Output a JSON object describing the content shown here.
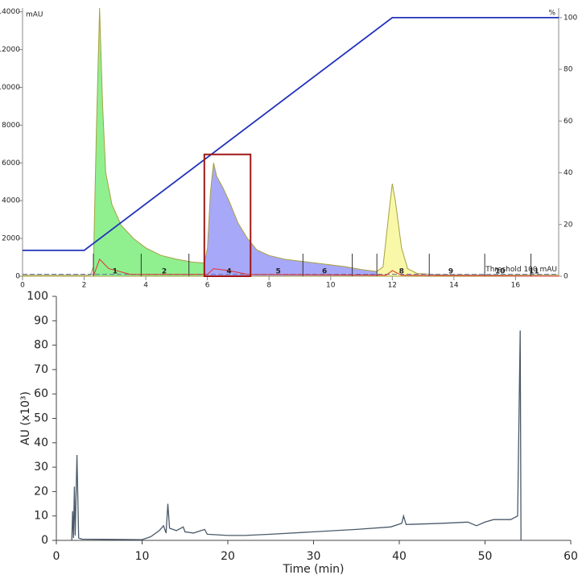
{
  "chart_data": [
    {
      "type": "area",
      "y_unit": "mAU",
      "y2_unit": "%",
      "xlim": [
        0,
        17.4
      ],
      "xticks": [
        0,
        2,
        4,
        6,
        8,
        10,
        12,
        14,
        16
      ],
      "ylim": [
        0,
        14200
      ],
      "yticks": [
        0,
        2000,
        4000,
        6000,
        8000,
        10000,
        12000,
        14000
      ],
      "y2lim": [
        0,
        103.7
      ],
      "y2ticks": [
        0,
        20,
        40,
        60,
        80,
        100
      ],
      "series": [
        {
          "color": "#a8a040",
          "fill": true,
          "x": [
            0,
            2.2,
            2.3,
            2.4,
            2.5,
            2.6,
            2.7,
            2.9,
            3.2,
            3.6,
            4.0,
            4.5,
            5.0,
            5.5,
            5.9,
            6.0,
            6.1,
            6.2,
            6.3,
            6.5,
            6.7,
            7.0,
            7.3,
            7.6,
            8,
            8.5,
            9,
            10,
            10.5,
            11,
            11.5,
            11.7,
            11.9,
            12.0,
            12.1,
            12.3,
            12.5,
            12.8,
            13.5,
            17.4
          ],
          "values": [
            50,
            50,
            500,
            8000,
            14200,
            9000,
            5500,
            3800,
            2700,
            2000,
            1500,
            1100,
            900,
            750,
            700,
            1500,
            4500,
            6000,
            5300,
            4700,
            4000,
            2800,
            2000,
            1400,
            1100,
            900,
            800,
            600,
            500,
            350,
            250,
            500,
            3500,
            4900,
            4000,
            1500,
            400,
            150,
            80,
            60
          ]
        },
        {
          "color": "#e03030",
          "x": [
            2.3,
            2.5,
            2.8,
            3.5,
            6,
            6.2,
            6.7,
            7.3,
            11.8,
            12,
            12.3,
            17.4
          ],
          "values": [
            0,
            900,
            400,
            100,
            100,
            400,
            300,
            100,
            50,
            300,
            50,
            0
          ]
        },
        {
          "color": "#2233bb",
          "axis": "y2",
          "x": [
            0,
            2,
            12,
            17.4
          ],
          "values": [
            10,
            10,
            100,
            100
          ]
        }
      ],
      "regions": [
        {
          "start": 2.3,
          "end": 5.9,
          "color": "#90f090"
        },
        {
          "start": 5.9,
          "end": 11.5,
          "color": "#a8a8f8"
        },
        {
          "start": 11.5,
          "end": 13.0,
          "color": "#f8f8a8"
        }
      ],
      "fraction_bounds": [
        2.3,
        3.85,
        5.4,
        5.9,
        9.1,
        10.7,
        11.5,
        13.2,
        15.0,
        16.5
      ],
      "fractions": [
        {
          "label": "1",
          "x": 3.0
        },
        {
          "label": "2",
          "x": 4.6
        },
        {
          "label": "4",
          "x": 6.7
        },
        {
          "label": "5",
          "x": 8.3
        },
        {
          "label": "6",
          "x": 9.8
        },
        {
          "label": "8",
          "x": 12.3
        },
        {
          "label": "9",
          "x": 13.9
        },
        {
          "label": "10",
          "x": 15.5
        },
        {
          "label": "11",
          "x": 16.6
        }
      ],
      "threshold": 100,
      "threshold_label": "Threshold 100 mAU",
      "threshold_color": "#6070b0",
      "highlight": {
        "x": [
          5.9,
          7.4
        ],
        "y": [
          0,
          6450
        ],
        "color": "#a01818"
      }
    },
    {
      "type": "line",
      "xlabel": "Time (min)",
      "ylabel": "AU (x10³)",
      "xlim": [
        0,
        60
      ],
      "xticks": [
        0,
        10,
        20,
        30,
        40,
        50,
        60
      ],
      "ylim": [
        0,
        100
      ],
      "yticks": [
        0,
        10,
        20,
        30,
        40,
        50,
        60,
        70,
        80,
        90,
        100
      ],
      "series": [
        {
          "color": "#4a5a6a",
          "x": [
            1.8,
            1.9,
            2.0,
            2.1,
            2.2,
            2.4,
            2.6,
            3,
            10,
            11,
            12,
            12.5,
            12.8,
            13,
            13.2,
            14,
            14.8,
            15,
            16,
            17.3,
            17.6,
            20,
            22,
            25,
            30,
            35,
            39,
            40.3,
            40.5,
            40.8,
            45,
            48,
            49,
            50,
            51,
            53,
            53.8,
            54.1,
            54.2
          ],
          "values": [
            0,
            12,
            1,
            22,
            2,
            35,
            1,
            0.5,
            0.3,
            1.5,
            4,
            6,
            3,
            15,
            5,
            4,
            5.5,
            3.5,
            3,
            4.5,
            2.5,
            2,
            2,
            2.5,
            3.5,
            4.5,
            5.5,
            7,
            10,
            6.5,
            7,
            7.5,
            6,
            7.5,
            8.5,
            8.5,
            10,
            86,
            0
          ]
        }
      ]
    }
  ]
}
